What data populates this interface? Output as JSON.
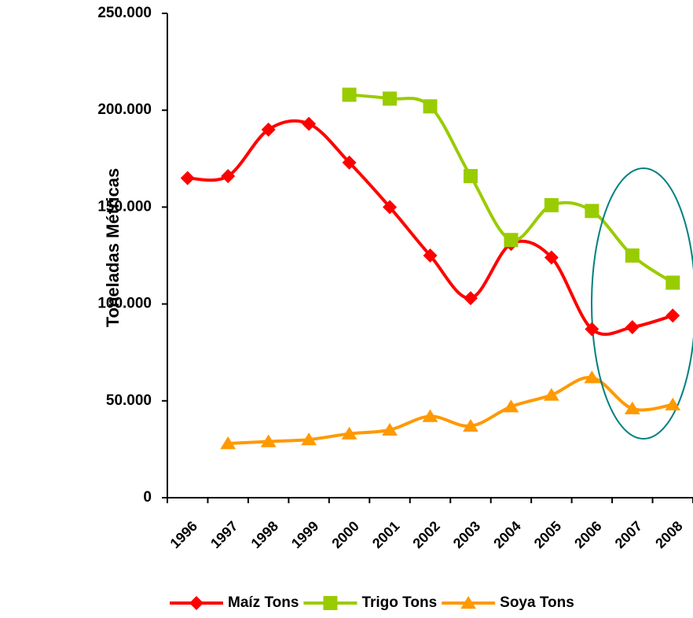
{
  "chart_data": {
    "type": "line",
    "y_label": "Toneladas Métricas",
    "categories": [
      "1996",
      "1997",
      "1998",
      "1999",
      "2000",
      "2001",
      "2002",
      "2003",
      "2004",
      "2005",
      "2006",
      "2007",
      "2008"
    ],
    "series": [
      {
        "name": "Maíz Tons",
        "color": "#ff0000",
        "marker": "diamond",
        "values": [
          165000,
          166000,
          190000,
          193000,
          173000,
          150000,
          125000,
          103000,
          131000,
          124000,
          87000,
          88000,
          94000
        ]
      },
      {
        "name": "Trigo Tons",
        "color": "#99cc00",
        "marker": "square",
        "values": [
          null,
          null,
          null,
          null,
          208000,
          206000,
          202000,
          166000,
          133000,
          151000,
          148000,
          125000,
          111000
        ]
      },
      {
        "name": "Soya Tons",
        "color": "#ff9900",
        "marker": "triangle",
        "values": [
          null,
          28000,
          29000,
          30000,
          33000,
          35000,
          42000,
          37000,
          47000,
          53000,
          62000,
          46000,
          48000
        ]
      }
    ],
    "ylim": [
      0,
      250000
    ],
    "yticks": [
      0,
      {
        "value": 50000,
        "label": "50.000"
      },
      {
        "value": 100000,
        "label": "100.000"
      },
      {
        "value": 150000,
        "label": "150.000"
      },
      {
        "value": 200000,
        "label": "200.000"
      },
      {
        "value": 250000,
        "label": "250.000"
      }
    ],
    "grid": false,
    "legend": "bottom",
    "smooth": true
  }
}
